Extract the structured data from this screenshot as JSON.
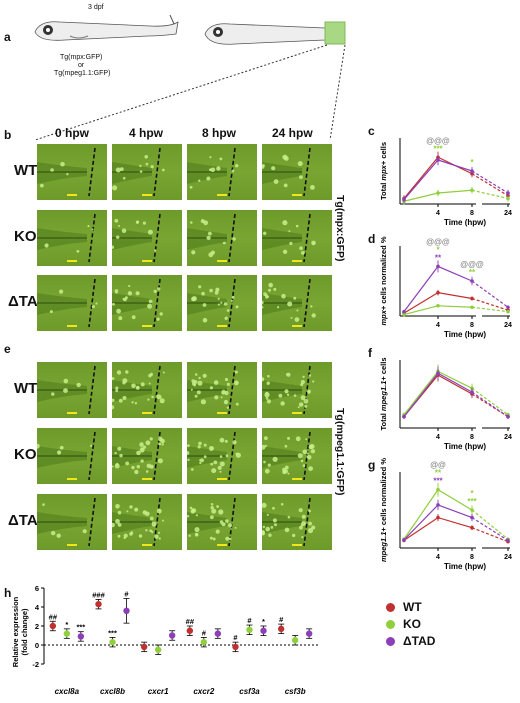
{
  "panel_letters": {
    "a": "a",
    "b": "b",
    "c": "c",
    "d": "d",
    "e": "e",
    "f": "f",
    "g": "g",
    "h": "h"
  },
  "panel_a": {
    "stage": "3 dpf",
    "tg1": "Tg(mpx:GFP)",
    "or": "or",
    "tg2": "Tg(mpeg1.1:GFP)"
  },
  "image_grid": {
    "columns": [
      "0 hpw",
      "4 hpw",
      "8 hpw",
      "24 hpw"
    ],
    "rows": [
      "WT",
      "KO",
      "ΔTAD"
    ],
    "label_b": "Tg(mpx:GFP)",
    "label_e": "Tg(mpeg1.1:GFP)"
  },
  "colors": {
    "wt": "#c0302e",
    "ko": "#8fcf3c",
    "dtad": "#8c3fb8",
    "sig_gray": "#888888",
    "scale_bar": "#f0e61a",
    "tissue": "#74a02f"
  },
  "chart_data": [
    {
      "panel": "c",
      "type": "line",
      "ylabel_main": "Total",
      "ylabel_sub": "mpx",
      "ylabel_tail": "cells",
      "xlabel": "Time (hpw)",
      "x": [
        0,
        4,
        8,
        24
      ],
      "x_ticks": [
        "4",
        "8",
        "24"
      ],
      "series": [
        {
          "values": [
            1,
            8.5,
            5.5,
            1.5
          ]
        },
        {
          "values": [
            0.5,
            2,
            2.5,
            1
          ]
        },
        {
          "values": [
            0.8,
            8,
            6,
            2
          ]
        }
      ],
      "significance": {
        "4": [
          "@@@",
          "***"
        ],
        "8": [
          "*"
        ]
      }
    },
    {
      "panel": "d",
      "type": "line",
      "ylabel_main": "cells normalized %",
      "ylabel_sub": "mpx",
      "xlabel": "Time (hpw)",
      "x": [
        0,
        4,
        8,
        24
      ],
      "x_ticks": [
        "4",
        "8",
        "24"
      ],
      "series": [
        {
          "values": [
            1,
            8,
            6,
            2
          ]
        },
        {
          "values": [
            0.5,
            3.5,
            3,
            1.5
          ]
        },
        {
          "values": [
            1.5,
            17,
            12,
            3
          ]
        }
      ],
      "significance": {
        "4": [
          "@@@",
          "*",
          "**"
        ],
        "8": [
          "@@@",
          "**"
        ]
      }
    },
    {
      "panel": "f",
      "type": "line",
      "ylabel_main": "Total",
      "ylabel_sub": "mpeg1.1",
      "ylabel_tail": "cells",
      "xlabel": "Time (hpw)",
      "x": [
        0,
        4,
        8,
        24
      ],
      "x_ticks": [
        "4",
        "8",
        "24"
      ],
      "series": [
        {
          "values": [
            3,
            14,
            9,
            3
          ]
        },
        {
          "values": [
            3.5,
            15,
            10.5,
            3.5
          ]
        },
        {
          "values": [
            3,
            14.5,
            9.5,
            3
          ]
        }
      ],
      "significance": {}
    },
    {
      "panel": "g",
      "type": "line",
      "ylabel_main": "cells normalized %",
      "ylabel_sub": "mpeg1.1",
      "xlabel": "Time (hpw)",
      "x": [
        0,
        4,
        8,
        24
      ],
      "x_ticks": [
        "4",
        "8",
        "24"
      ],
      "series": [
        {
          "values": [
            3,
            12,
            8,
            2.5
          ]
        },
        {
          "values": [
            3.5,
            23,
            15,
            3.5
          ]
        },
        {
          "values": [
            3.2,
            17,
            12,
            3
          ]
        }
      ],
      "significance": {
        "4": [
          "@@",
          "**",
          "***"
        ],
        "8": [
          "*",
          "***"
        ]
      }
    },
    {
      "panel": "h",
      "type": "scatter",
      "ylabel": "Relative expression (fold change)",
      "ylim": [
        -2,
        6
      ],
      "y_ticks": [
        "6",
        "4",
        "2",
        "0",
        "-2"
      ],
      "categories": [
        "cxcl8a",
        "cxcl8b",
        "cxcr1",
        "cxcr2",
        "csf3a",
        "csf3b"
      ],
      "series": [
        {
          "name": "WT",
          "values": [
            2,
            4.3,
            -0.2,
            1.5,
            -0.2,
            1.7
          ]
        },
        {
          "name": "KO",
          "values": [
            1.2,
            0.3,
            -0.5,
            0.3,
            1.6,
            0.5
          ]
        },
        {
          "name": "ΔTAD",
          "values": [
            0.9,
            3.6,
            1,
            1.2,
            1.5,
            1.2
          ]
        }
      ],
      "annotations": {
        "cxcl8a": [
          "##",
          "*",
          "***"
        ],
        "cxcl8b": [
          "###",
          "***",
          "#"
        ],
        "cxcr2": [
          "##",
          "#"
        ],
        "csf3a": [
          "#",
          "#",
          "*"
        ],
        "csf3b": [
          "#"
        ]
      },
      "legend": [
        "WT",
        "KO",
        "ΔTAD"
      ]
    }
  ]
}
